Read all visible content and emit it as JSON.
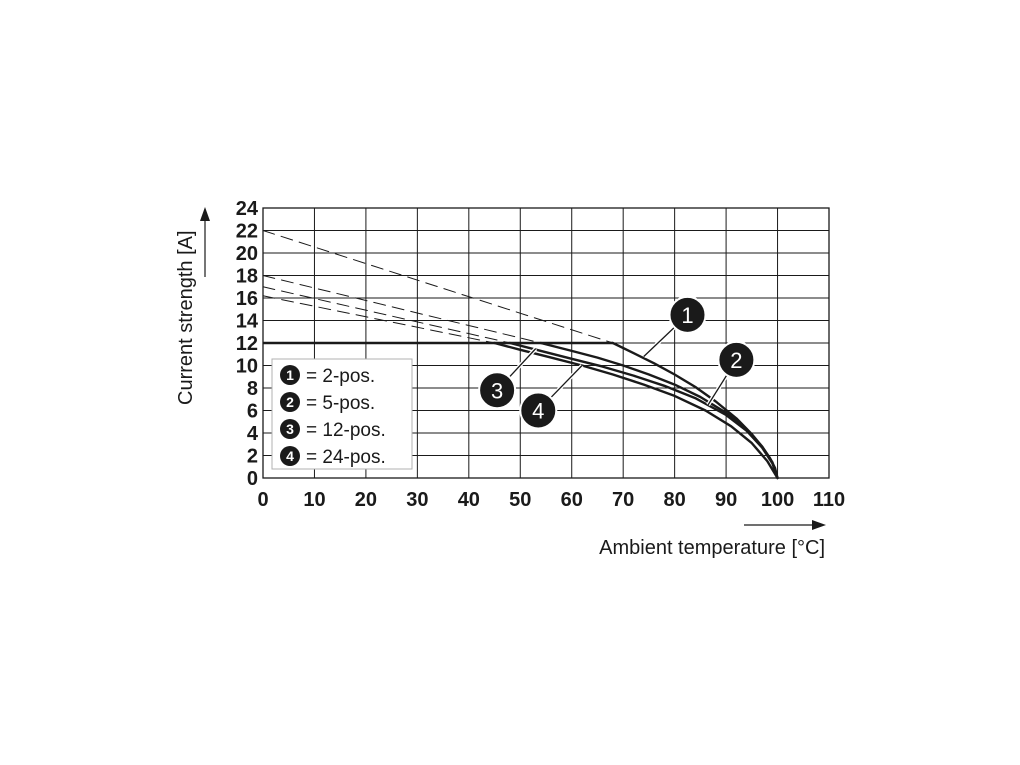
{
  "chart_data": {
    "type": "line",
    "xlabel": "Ambient temperature [°C]",
    "ylabel": "Current strength [A]",
    "xlim": [
      0,
      110
    ],
    "ylim": [
      0,
      24
    ],
    "x_ticks": [
      "0",
      "10",
      "20",
      "30",
      "40",
      "50",
      "60",
      "70",
      "80",
      "90",
      "100",
      "110"
    ],
    "y_ticks": [
      "0",
      "2",
      "4",
      "6",
      "8",
      "10",
      "12",
      "14",
      "16",
      "18",
      "20",
      "22",
      "24"
    ],
    "grid": true,
    "legend": {
      "placement": "lower-left",
      "entries": [
        {
          "marker": "1",
          "text": "= 2-pos."
        },
        {
          "marker": "2",
          "text": "= 5-pos."
        },
        {
          "marker": "3",
          "text": "= 12-pos."
        },
        {
          "marker": "4",
          "text": "= 24-pos."
        }
      ]
    },
    "limit_line": {
      "y": 12,
      "x_end": 68
    },
    "series": [
      {
        "marker": "1",
        "style": "solid",
        "x": [
          68,
          72,
          76,
          80,
          84,
          88,
          92,
          95,
          97,
          98.5,
          99.5,
          100
        ],
        "y": [
          12,
          11.1,
          10.2,
          9.2,
          8.1,
          6.8,
          5.3,
          3.9,
          2.8,
          1.8,
          0.9,
          0
        ]
      },
      {
        "marker": "2",
        "style": "solid",
        "x": [
          54,
          60,
          65,
          70,
          75,
          80,
          85,
          90,
          94,
          97,
          99,
          100
        ],
        "y": [
          12,
          11.3,
          10.7,
          10.0,
          9.2,
          8.3,
          7.2,
          5.8,
          4.3,
          2.8,
          1.4,
          0
        ]
      },
      {
        "marker": "3",
        "style": "solid",
        "x": [
          48,
          54,
          60,
          66,
          72,
          78,
          84,
          90,
          94,
          97,
          99,
          100
        ],
        "y": [
          12,
          11.3,
          10.6,
          9.9,
          9.1,
          8.2,
          7.1,
          5.6,
          4.2,
          2.7,
          1.3,
          0
        ]
      },
      {
        "marker": "4",
        "style": "solid",
        "x": [
          45,
          50,
          56,
          62,
          68,
          74,
          80,
          86,
          91,
          95,
          98,
          100
        ],
        "y": [
          12,
          11.4,
          10.7,
          10.0,
          9.2,
          8.3,
          7.3,
          6.0,
          4.6,
          3.1,
          1.5,
          0
        ]
      },
      {
        "marker": "1",
        "style": "dashed",
        "x": [
          0,
          68
        ],
        "y": [
          22,
          12
        ]
      },
      {
        "marker": "2",
        "style": "dashed",
        "x": [
          0,
          54
        ],
        "y": [
          18,
          12
        ]
      },
      {
        "marker": "3",
        "style": "dashed",
        "x": [
          0,
          48
        ],
        "y": [
          17,
          12
        ]
      },
      {
        "marker": "4",
        "style": "dashed",
        "x": [
          0,
          45
        ],
        "y": [
          16.2,
          12
        ]
      }
    ],
    "callouts": [
      {
        "marker": "1",
        "x": 82.5,
        "y": 14.5,
        "tx": 74,
        "ty": 10.8
      },
      {
        "marker": "2",
        "x": 92,
        "y": 10.5,
        "tx": 86.5,
        "ty": 6.5
      },
      {
        "marker": "3",
        "x": 45.5,
        "y": 7.8,
        "tx": 53,
        "ty": 11.5
      },
      {
        "marker": "4",
        "x": 53.5,
        "y": 6.0,
        "tx": 62,
        "ty": 10.0
      }
    ]
  }
}
